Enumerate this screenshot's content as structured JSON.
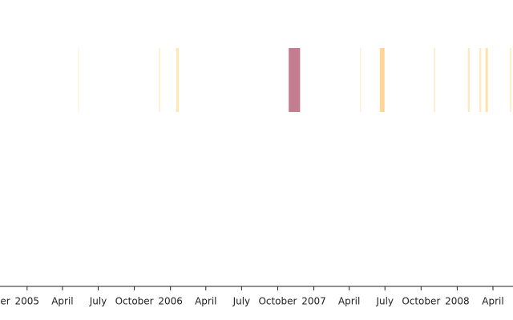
{
  "chart_data": {
    "type": "timeline",
    "xlim": [
      "2004-10-24",
      "2008-05-22"
    ],
    "xticks": [
      {
        "value": "2004-10-01",
        "label": "October"
      },
      {
        "value": "2005-01-01",
        "label": "2005"
      },
      {
        "value": "2005-04-01",
        "label": "April"
      },
      {
        "value": "2005-07-01",
        "label": "July"
      },
      {
        "value": "2005-10-01",
        "label": "October"
      },
      {
        "value": "2006-01-01",
        "label": "2006"
      },
      {
        "value": "2006-04-01",
        "label": "April"
      },
      {
        "value": "2006-07-01",
        "label": "July"
      },
      {
        "value": "2006-10-01",
        "label": "October"
      },
      {
        "value": "2007-01-01",
        "label": "2007"
      },
      {
        "value": "2007-04-01",
        "label": "April"
      },
      {
        "value": "2007-07-01",
        "label": "July"
      },
      {
        "value": "2007-10-01",
        "label": "October"
      },
      {
        "value": "2008-01-01",
        "label": "2008"
      },
      {
        "value": "2008-04-01",
        "label": "April"
      }
    ],
    "x": [
      "2005-05-10",
      "2005-12-02",
      "2006-01-16",
      "2006-10-29",
      "2007-04-28",
      "2007-06-18",
      "2007-11-02",
      "2008-01-28",
      "2008-02-26",
      "2008-03-13",
      "2008-05-14"
    ],
    "x2": [
      "2005-05-13",
      "2005-12-06",
      "2006-01-22",
      "2006-11-27",
      "2007-05-01",
      "2007-06-30",
      "2007-11-06",
      "2008-02-02",
      "2008-03-02",
      "2008-03-19",
      "2008-05-18"
    ],
    "values": [
      0.1,
      0.15,
      0.3,
      1,
      0.15,
      0.5,
      0.2,
      0.25,
      0.25,
      0.35,
      0.2
    ],
    "colors": [
      "#fff6d9",
      "#fff1d2",
      "#ffe7b0",
      "#c47d90",
      "#fff1d2",
      "#ffd59a",
      "#ffefcc",
      "#ffeac0",
      "#ffeac0",
      "#ffe1a8",
      "#ffefcc"
    ]
  }
}
